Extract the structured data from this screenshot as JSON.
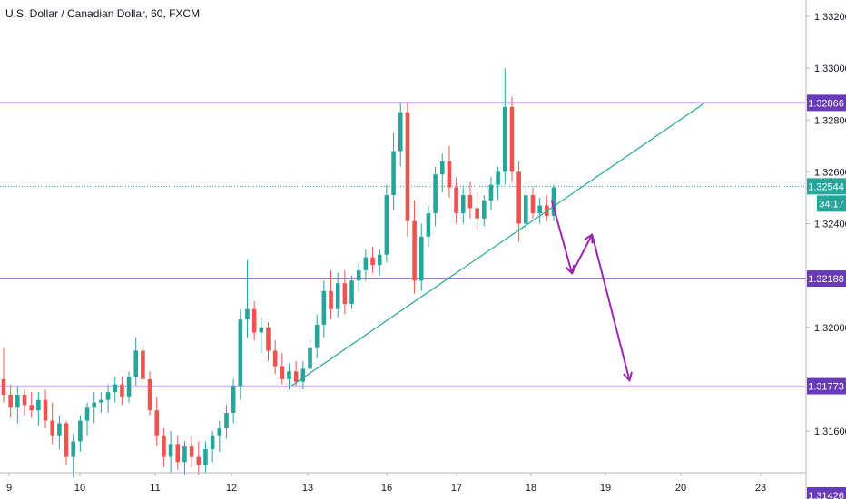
{
  "chart_data": {
    "type": "candlestick",
    "title": "U.S. Dollar / Canadian Dollar, 60, FXCM",
    "ylim": [
      1.3142,
      1.3326
    ],
    "y_ticks": [
      "1.33200",
      "1.33000",
      "1.32800",
      "1.32600",
      "1.32400",
      "1.32000",
      "1.31600"
    ],
    "x_ticks": [
      "9",
      "10",
      "11",
      "12",
      "13",
      "16",
      "17",
      "18",
      "19",
      "20",
      "23"
    ],
    "horizontal_levels": [
      {
        "value": 1.32866,
        "label": "1.32866"
      },
      {
        "value": 1.32188,
        "label": "1.32188"
      },
      {
        "value": 1.31773,
        "label": "1.31773"
      }
    ],
    "current_price": {
      "value": 1.32544,
      "label": "1.32544",
      "countdown": "34:17"
    },
    "trendline": {
      "from": {
        "x": 12.78,
        "y": 1.31773
      },
      "to": {
        "x": 20.9,
        "y": 1.32866
      }
    },
    "projection_path": [
      {
        "x": 18.28,
        "y": 1.32488
      },
      {
        "x": 18.55,
        "y": 1.32208
      },
      {
        "x": 18.82,
        "y": 1.32358
      },
      {
        "x": 19.32,
        "y": 1.31795
      }
    ],
    "bottom_partial_tick": "1.31426",
    "colors": {
      "bull": "#26a69a",
      "bear": "#ef5350",
      "level": "#7e57c2",
      "trend": "#26a69a",
      "arrow": "#9c27b0",
      "price_tag": "#26a69a",
      "level_tag": "#673ab7"
    },
    "candles": [
      [
        1.318,
        1.3192,
        1.3171,
        1.3174
      ],
      [
        1.3174,
        1.3178,
        1.3165,
        1.3169
      ],
      [
        1.3169,
        1.3177,
        1.3163,
        1.3174
      ],
      [
        1.3174,
        1.3176,
        1.3166,
        1.317
      ],
      [
        1.317,
        1.3175,
        1.3165,
        1.3168
      ],
      [
        1.3168,
        1.3175,
        1.3162,
        1.3172
      ],
      [
        1.3172,
        1.3176,
        1.3161,
        1.3164
      ],
      [
        1.3164,
        1.3171,
        1.3155,
        1.3158
      ],
      [
        1.3158,
        1.3166,
        1.3153,
        1.3163
      ],
      [
        1.3163,
        1.3164,
        1.3147,
        1.315
      ],
      [
        1.315,
        1.3159,
        1.3142,
        1.3156
      ],
      [
        1.3156,
        1.3166,
        1.3152,
        1.3164
      ],
      [
        1.3164,
        1.3171,
        1.3158,
        1.3169
      ],
      [
        1.3169,
        1.3175,
        1.3163,
        1.3171
      ],
      [
        1.3171,
        1.3175,
        1.3167,
        1.3172
      ],
      [
        1.3172,
        1.3178,
        1.3167,
        1.3175
      ],
      [
        1.3175,
        1.3181,
        1.3171,
        1.3178
      ],
      [
        1.3178,
        1.3181,
        1.317,
        1.3173
      ],
      [
        1.3173,
        1.3183,
        1.3171,
        1.3181
      ],
      [
        1.3181,
        1.3196,
        1.3177,
        1.3191
      ],
      [
        1.3191,
        1.3193,
        1.3178,
        1.318
      ],
      [
        1.318,
        1.3183,
        1.3166,
        1.3168
      ],
      [
        1.3168,
        1.3173,
        1.3154,
        1.3158
      ],
      [
        1.3158,
        1.3161,
        1.3146,
        1.315
      ],
      [
        1.315,
        1.316,
        1.3144,
        1.3155
      ],
      [
        1.3155,
        1.3158,
        1.3145,
        1.3148
      ],
      [
        1.3148,
        1.3156,
        1.3143,
        1.3154
      ],
      [
        1.3154,
        1.3158,
        1.3146,
        1.315
      ],
      [
        1.315,
        1.3156,
        1.3143,
        1.3147
      ],
      [
        1.3147,
        1.3156,
        1.3144,
        1.3153
      ],
      [
        1.3153,
        1.316,
        1.3148,
        1.3158
      ],
      [
        1.3158,
        1.3164,
        1.3152,
        1.3161
      ],
      [
        1.3161,
        1.317,
        1.3157,
        1.3167
      ],
      [
        1.3167,
        1.318,
        1.3163,
        1.3177
      ],
      [
        1.3177,
        1.3207,
        1.3172,
        1.3203
      ],
      [
        1.3203,
        1.3226,
        1.3196,
        1.3207
      ],
      [
        1.3207,
        1.321,
        1.3195,
        1.3198
      ],
      [
        1.3198,
        1.3204,
        1.319,
        1.32
      ],
      [
        1.32,
        1.3202,
        1.3187,
        1.3191
      ],
      [
        1.3191,
        1.3195,
        1.3182,
        1.3185
      ],
      [
        1.3185,
        1.319,
        1.3178,
        1.318
      ],
      [
        1.318,
        1.3186,
        1.3176,
        1.3183
      ],
      [
        1.3183,
        1.3187,
        1.3177,
        1.3179
      ],
      [
        1.3179,
        1.3187,
        1.3176,
        1.3184
      ],
      [
        1.3184,
        1.3195,
        1.3181,
        1.3192
      ],
      [
        1.3192,
        1.3205,
        1.3188,
        1.3201
      ],
      [
        1.3201,
        1.3218,
        1.3196,
        1.3214
      ],
      [
        1.3214,
        1.3222,
        1.3203,
        1.3207
      ],
      [
        1.3207,
        1.3221,
        1.3204,
        1.3217
      ],
      [
        1.3217,
        1.3222,
        1.3205,
        1.3209
      ],
      [
        1.3209,
        1.322,
        1.3207,
        1.3218
      ],
      [
        1.3218,
        1.3225,
        1.3214,
        1.3222
      ],
      [
        1.3222,
        1.323,
        1.3218,
        1.3227
      ],
      [
        1.3227,
        1.3231,
        1.3221,
        1.3224
      ],
      [
        1.3224,
        1.323,
        1.322,
        1.3228
      ],
      [
        1.3228,
        1.3255,
        1.3225,
        1.3251
      ],
      [
        1.3251,
        1.3275,
        1.3245,
        1.3268
      ],
      [
        1.3268,
        1.3287,
        1.3262,
        1.3283
      ],
      [
        1.3283,
        1.3287,
        1.3235,
        1.3241
      ],
      [
        1.3241,
        1.3249,
        1.3213,
        1.3218
      ],
      [
        1.3218,
        1.324,
        1.3214,
        1.3235
      ],
      [
        1.3235,
        1.3247,
        1.3231,
        1.3244
      ],
      [
        1.3244,
        1.3262,
        1.3239,
        1.3259
      ],
      [
        1.3259,
        1.3267,
        1.3252,
        1.3264
      ],
      [
        1.3264,
        1.327,
        1.325,
        1.3254
      ],
      [
        1.3254,
        1.3258,
        1.324,
        1.3244
      ],
      [
        1.3244,
        1.3254,
        1.324,
        1.3251
      ],
      [
        1.3251,
        1.3256,
        1.3242,
        1.3246
      ],
      [
        1.3246,
        1.3252,
        1.3238,
        1.3242
      ],
      [
        1.3242,
        1.3251,
        1.3239,
        1.3249
      ],
      [
        1.3249,
        1.3258,
        1.3245,
        1.3255
      ],
      [
        1.3255,
        1.3262,
        1.3249,
        1.326
      ],
      [
        1.326,
        1.33,
        1.3255,
        1.3285
      ],
      [
        1.3285,
        1.3289,
        1.3256,
        1.326
      ],
      [
        1.326,
        1.3264,
        1.3233,
        1.324
      ],
      [
        1.324,
        1.3254,
        1.3237,
        1.3251
      ],
      [
        1.3251,
        1.3254,
        1.3242,
        1.3244
      ],
      [
        1.3244,
        1.325,
        1.324,
        1.3247
      ],
      [
        1.3247,
        1.3251,
        1.3241,
        1.3243
      ],
      [
        1.3243,
        1.3255,
        1.3241,
        1.3254
      ]
    ]
  }
}
